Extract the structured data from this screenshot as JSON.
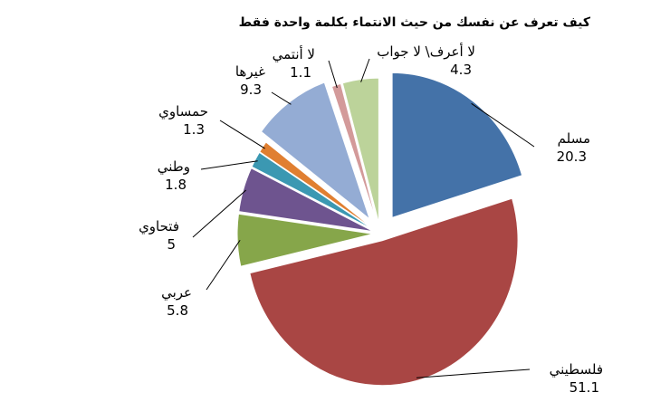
{
  "chart_data": {
    "type": "pie",
    "title": "كيف تعرف عن نفسك من حيث الانتماء بكلمة واحدة فقط",
    "legend": "none",
    "slices": [
      {
        "label": "مسلم",
        "value": 20.3,
        "value_text": "20.3",
        "color": "#4472a8"
      },
      {
        "label": "فلسطيني",
        "value": 51.1,
        "value_text": "51.1",
        "color": "#a94644"
      },
      {
        "label": "عربي",
        "value": 5.8,
        "value_text": "5.8",
        "color": "#86a64a"
      },
      {
        "label": "فتحاوي",
        "value": 5,
        "value_text": "5",
        "color": "#6e548f"
      },
      {
        "label": "وطني",
        "value": 1.8,
        "value_text": "1.8",
        "color": "#3b98b2"
      },
      {
        "label": "حمساوي",
        "value": 1.3,
        "value_text": "1.3",
        "color": "#e07f31"
      },
      {
        "label": "غيرها",
        "value": 9.3,
        "value_text": "9.3",
        "color": "#94acd4"
      },
      {
        "label": "لا أنتمي",
        "value": 1.1,
        "value_text": "1.1",
        "color": "#d39a9a"
      },
      {
        "label": "لا أعرف\\ لا جواب",
        "value": 4.3,
        "value_text": "4.3",
        "color": "#bcd39a"
      }
    ]
  }
}
